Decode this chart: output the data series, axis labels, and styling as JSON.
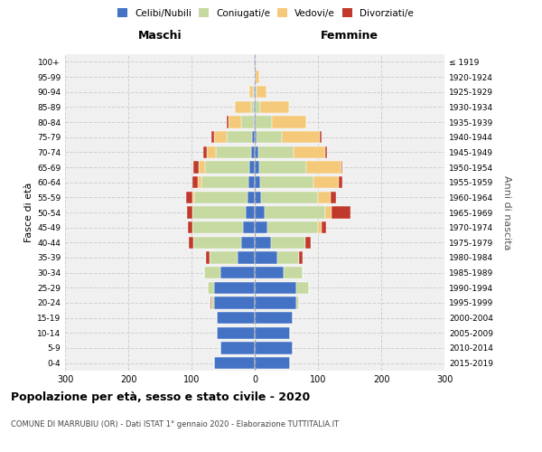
{
  "age_groups": [
    "0-4",
    "5-9",
    "10-14",
    "15-19",
    "20-24",
    "25-29",
    "30-34",
    "35-39",
    "40-44",
    "45-49",
    "50-54",
    "55-59",
    "60-64",
    "65-69",
    "70-74",
    "75-79",
    "80-84",
    "85-89",
    "90-94",
    "95-99",
    "100+"
  ],
  "birth_years": [
    "2015-2019",
    "2010-2014",
    "2005-2009",
    "2000-2004",
    "1995-1999",
    "1990-1994",
    "1985-1989",
    "1980-1984",
    "1975-1979",
    "1970-1974",
    "1965-1969",
    "1960-1964",
    "1955-1959",
    "1950-1954",
    "1945-1949",
    "1940-1944",
    "1935-1939",
    "1930-1934",
    "1925-1929",
    "1920-1924",
    "≤ 1919"
  ],
  "colors": {
    "celibi": "#4472c4",
    "coniugati": "#c5d9a0",
    "vedovi": "#f5c97a",
    "divorziati": "#c0392b"
  },
  "males": {
    "celibi": [
      65,
      55,
      60,
      60,
      65,
      65,
      55,
      27,
      22,
      18,
      14,
      11,
      10,
      9,
      6,
      5,
      2,
      1,
      1,
      0,
      1
    ],
    "coniugati": [
      0,
      0,
      0,
      0,
      3,
      10,
      25,
      45,
      75,
      80,
      85,
      85,
      75,
      70,
      55,
      40,
      20,
      5,
      2,
      0,
      0
    ],
    "vedovi": [
      0,
      0,
      0,
      0,
      0,
      0,
      0,
      0,
      0,
      0,
      0,
      2,
      5,
      10,
      15,
      20,
      20,
      25,
      5,
      0,
      0
    ],
    "divorziati": [
      0,
      0,
      0,
      0,
      2,
      0,
      0,
      5,
      8,
      8,
      8,
      10,
      8,
      8,
      5,
      3,
      3,
      0,
      0,
      0,
      0
    ]
  },
  "females": {
    "celibi": [
      55,
      60,
      55,
      60,
      65,
      65,
      45,
      35,
      25,
      20,
      16,
      10,
      8,
      7,
      6,
      3,
      2,
      1,
      1,
      2,
      1
    ],
    "coniugati": [
      0,
      0,
      0,
      0,
      5,
      20,
      30,
      35,
      55,
      80,
      95,
      90,
      85,
      75,
      55,
      40,
      25,
      8,
      2,
      0,
      0
    ],
    "vedovi": [
      0,
      0,
      0,
      0,
      0,
      0,
      0,
      0,
      0,
      5,
      10,
      20,
      40,
      55,
      50,
      60,
      55,
      45,
      15,
      5,
      1
    ],
    "divorziati": [
      0,
      0,
      0,
      0,
      0,
      0,
      0,
      5,
      8,
      8,
      30,
      8,
      5,
      2,
      3,
      2,
      0,
      0,
      0,
      0,
      0
    ]
  },
  "xlim": 300,
  "title": "Popolazione per età, sesso e stato civile - 2020",
  "subtitle": "COMUNE DI MARRUBIU (OR) - Dati ISTAT 1° gennaio 2020 - Elaborazione TUTTITALIA.IT",
  "ylabel_left": "Fasce di età",
  "ylabel_right": "Anni di nascita",
  "xlabel_left": "Maschi",
  "xlabel_right": "Femmine",
  "background_color": "#f0f0f0",
  "grid_color": "#cccccc"
}
